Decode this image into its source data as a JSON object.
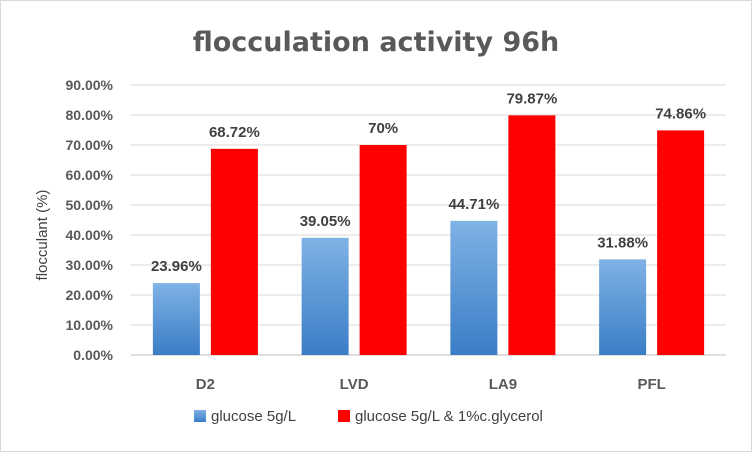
{
  "chart_data": {
    "type": "bar",
    "title": "flocculation activity 96h",
    "ylabel": "flocculant (%)",
    "xlabel": "",
    "categories": [
      "D2",
      "LVD",
      "LA9",
      "PFL"
    ],
    "ylim": [
      0,
      90
    ],
    "yticks": [
      "0.00%",
      "10.00%",
      "20.00%",
      "30.00%",
      "40.00%",
      "50.00%",
      "60.00%",
      "70.00%",
      "80.00%",
      "90.00%"
    ],
    "series": [
      {
        "name": "glucose 5g/L",
        "values": [
          23.96,
          39.05,
          44.71,
          31.88
        ],
        "labels": [
          "23.96%",
          "39.05%",
          "44.71%",
          "31.88%"
        ],
        "color_top": "#7fb2e5",
        "color_bottom": "#3a7dc6"
      },
      {
        "name": "glucose 5g/L & 1%c.glycerol",
        "values": [
          68.72,
          70,
          79.87,
          74.86
        ],
        "labels": [
          "68.72%",
          "70%",
          "79.87%",
          "74.86%"
        ],
        "color": "#ff0000"
      }
    ],
    "grid": true,
    "legend": "bottom"
  }
}
